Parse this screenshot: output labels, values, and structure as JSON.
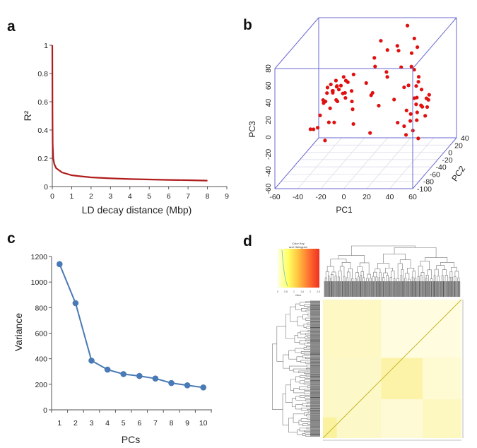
{
  "panels": {
    "a": "a",
    "b": "b",
    "c": "c",
    "d": "d"
  },
  "chart_data": [
    {
      "panel": "a",
      "type": "line",
      "xlabel": "LD decay distance (Mbp)",
      "ylabel": "R²",
      "xlim": [
        0,
        9
      ],
      "ylim": [
        0,
        1
      ],
      "xticks": [
        "0",
        "1",
        "2",
        "3",
        "4",
        "5",
        "6",
        "7",
        "8",
        "9"
      ],
      "yticks": [
        "0",
        "0.2",
        "0.4",
        "0.6",
        "0.8",
        "1"
      ],
      "color": "#b01c1c",
      "x": [
        0,
        0.01,
        0.02,
        0.05,
        0.1,
        0.2,
        0.35,
        0.5,
        0.75,
        1,
        1.5,
        2,
        3,
        4,
        5,
        6,
        7,
        8
      ],
      "y": [
        1.0,
        0.5,
        0.3,
        0.2,
        0.16,
        0.13,
        0.115,
        0.1,
        0.09,
        0.08,
        0.072,
        0.065,
        0.058,
        0.053,
        0.05,
        0.047,
        0.045,
        0.042
      ]
    },
    {
      "panel": "b",
      "type": "scatter",
      "dimensions": 3,
      "xlabel": "PC1",
      "ylabel": "PC2",
      "zlabel": "PC3",
      "xlim": [
        -60,
        60
      ],
      "ylim": [
        -100,
        40
      ],
      "zlim": [
        -60,
        80
      ],
      "xticks": [
        "-60",
        "-40",
        "-20",
        "0",
        "20",
        "40",
        "60"
      ],
      "yticks": [
        "-100",
        "-80",
        "-60",
        "-40",
        "-20",
        "0",
        "20",
        "40"
      ],
      "zticks": [
        "-60",
        "-40",
        "-20",
        "0",
        "20",
        "40",
        "60",
        "80"
      ],
      "color": "#e01010",
      "box_color": "#6a6ad0",
      "points": [
        [
          -30,
          -25,
          20
        ],
        [
          -28,
          -20,
          25
        ],
        [
          -25,
          -30,
          30
        ],
        [
          -33,
          -15,
          18
        ],
        [
          -22,
          -35,
          28
        ],
        [
          -35,
          -30,
          12
        ],
        [
          -27,
          -10,
          22
        ],
        [
          -20,
          -20,
          32
        ],
        [
          -31,
          -40,
          26
        ],
        [
          -24,
          -15,
          15
        ],
        [
          -29,
          -35,
          34
        ],
        [
          -36,
          -20,
          24
        ],
        [
          -18,
          -30,
          22
        ],
        [
          -26,
          -5,
          30
        ],
        [
          -33,
          -45,
          20
        ],
        [
          -21,
          -10,
          26
        ],
        [
          -38,
          -25,
          8
        ],
        [
          -30,
          -15,
          30
        ],
        [
          -23,
          -40,
          18
        ],
        [
          -34,
          -10,
          16
        ],
        [
          -26,
          -25,
          10
        ],
        [
          -19,
          -25,
          14
        ],
        [
          -31,
          -30,
          4
        ],
        [
          -37,
          -40,
          0
        ],
        [
          -28,
          -45,
          -6
        ],
        [
          -40,
          -50,
          -12
        ],
        [
          -35,
          -55,
          -8
        ],
        [
          -22,
          -50,
          -4
        ],
        [
          -44,
          -45,
          -14
        ],
        [
          -30,
          -50,
          -25
        ],
        [
          -15,
          -20,
          20
        ],
        [
          -12,
          -30,
          12
        ],
        [
          -16,
          -10,
          35
        ],
        [
          -10,
          -35,
          5
        ],
        [
          -5,
          -10,
          25
        ],
        [
          0,
          0,
          40
        ],
        [
          5,
          0,
          70
        ],
        [
          8,
          10,
          55
        ],
        [
          12,
          -5,
          30
        ],
        [
          15,
          20,
          50
        ],
        [
          2,
          -20,
          15
        ],
        [
          20,
          10,
          35
        ],
        [
          25,
          25,
          45
        ],
        [
          28,
          -10,
          20
        ],
        [
          10,
          -25,
          5
        ],
        [
          18,
          5,
          62
        ],
        [
          30,
          15,
          30
        ],
        [
          22,
          -20,
          10
        ],
        [
          -2,
          5,
          48
        ],
        [
          33,
          -5,
          42
        ],
        [
          14,
          -15,
          40
        ],
        [
          26,
          30,
          60
        ],
        [
          6,
          -30,
          22
        ],
        [
          35,
          10,
          18
        ],
        [
          -8,
          -40,
          -10
        ],
        [
          12,
          -60,
          -12
        ],
        [
          20,
          30,
          75
        ],
        [
          30,
          25,
          52
        ],
        [
          38,
          0,
          28
        ],
        [
          45,
          -40,
          20
        ],
        [
          48,
          -45,
          15
        ],
        [
          50,
          -50,
          25
        ],
        [
          52,
          -40,
          10
        ],
        [
          55,
          -55,
          18
        ],
        [
          57,
          -45,
          22
        ],
        [
          53,
          -60,
          12
        ],
        [
          46,
          -55,
          8
        ],
        [
          59,
          -50,
          14
        ],
        [
          50,
          -35,
          28
        ],
        [
          54,
          -65,
          5
        ],
        [
          44,
          -30,
          30
        ],
        [
          58,
          -40,
          24
        ],
        [
          47,
          -60,
          2
        ],
        [
          41,
          -50,
          10
        ],
        [
          56,
          -35,
          16
        ],
        [
          43,
          -65,
          -2
        ],
        [
          52,
          -70,
          -5
        ],
        [
          60,
          -60,
          8
        ],
        [
          40,
          -40,
          35
        ],
        [
          46,
          -70,
          -10
        ],
        [
          58,
          -75,
          -12
        ],
        [
          36,
          -60,
          0
        ]
      ]
    },
    {
      "panel": "c",
      "type": "line",
      "xlabel": "PCs",
      "ylabel": "Variance",
      "ylim": [
        0,
        1200
      ],
      "yticks": [
        "0",
        "200",
        "400",
        "600",
        "800",
        "1000",
        "1200"
      ],
      "categories": [
        "1",
        "2",
        "3",
        "4",
        "5",
        "6",
        "7",
        "8",
        "9",
        "10"
      ],
      "values": [
        1140,
        835,
        385,
        315,
        280,
        265,
        245,
        210,
        192,
        175
      ],
      "color": "#4a7ab5"
    },
    {
      "panel": "d",
      "type": "heatmap",
      "color_key": {
        "title_line1": "Color Key",
        "title_line2": "and Histogram",
        "xlabel": "Value",
        "ticks": [
          "0",
          "0.5",
          "1",
          "1.5",
          "2",
          "2.5"
        ],
        "colors": [
          "#ffffe0",
          "#ffff60",
          "#ffc040",
          "#ff7030",
          "#f03020"
        ]
      },
      "dendrograms": [
        "top",
        "left"
      ]
    }
  ]
}
